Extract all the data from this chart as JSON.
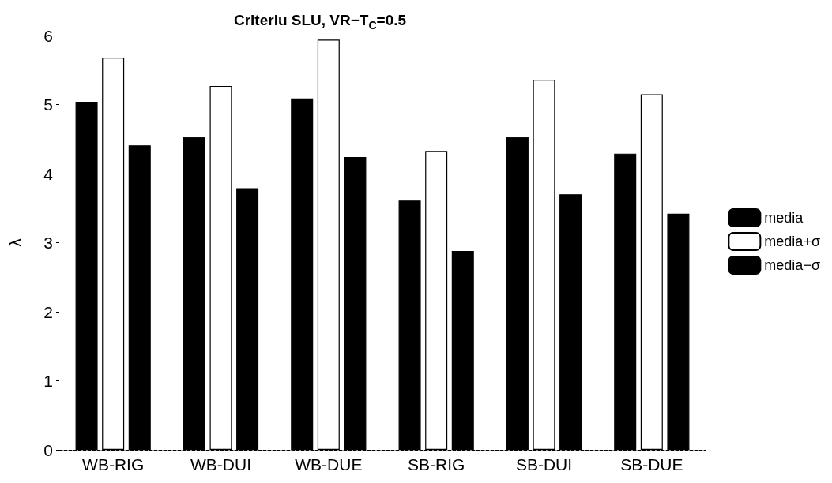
{
  "chart_data": {
    "type": "bar",
    "title": "Criteriu SLU, VR−T$_{C}$=0.5",
    "ylabel": "λ",
    "categories": [
      "WB-RIG",
      "WB-DUI",
      "WB-DUE",
      "SB-RIG",
      "SB-DUI",
      "SB-DUE"
    ],
    "series": [
      {
        "name": "media",
        "color": "#000000",
        "values": [
          5.04,
          4.53,
          5.09,
          3.61,
          4.53,
          4.29
        ]
      },
      {
        "name": "media+σ",
        "color": "#ffffff",
        "values": [
          5.68,
          5.27,
          5.94,
          4.33,
          5.36,
          5.15
        ]
      },
      {
        "name": "media−σ",
        "color": "#000000",
        "values": [
          4.41,
          3.79,
          4.24,
          2.88,
          3.7,
          3.42
        ]
      }
    ],
    "ylim": [
      0,
      6
    ],
    "yticks": [
      0,
      1,
      2,
      3,
      4,
      5,
      6
    ],
    "grid": false,
    "legend": "right"
  }
}
